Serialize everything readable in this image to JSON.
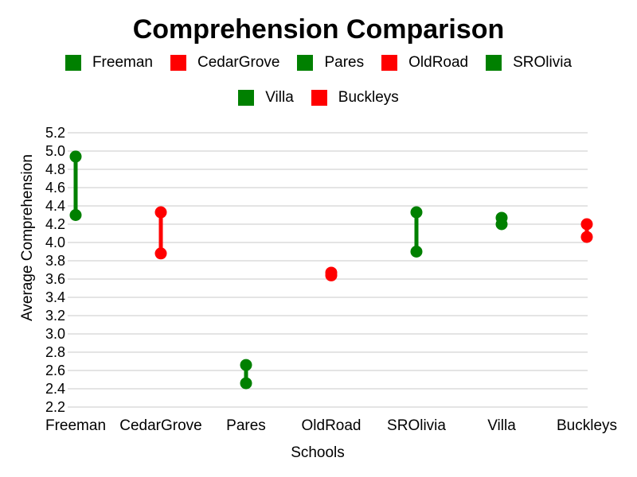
{
  "chart_data": {
    "type": "dumbbell",
    "title": "Comprehension Comparison",
    "xlabel": "Schools",
    "ylabel": "Average Comprehension",
    "ylim": [
      2.2,
      5.2
    ],
    "yticks": [
      "2.2",
      "2.4",
      "2.6",
      "2.8",
      "3.0",
      "3.2",
      "3.4",
      "3.6",
      "3.8",
      "4.0",
      "4.2",
      "4.4",
      "4.6",
      "4.8",
      "5.0",
      "5.2"
    ],
    "grid": true,
    "legend_position": "top",
    "categories": [
      "Freeman",
      "CedarGrove",
      "Pares",
      "OldRoad",
      "SROlivia",
      "Villa",
      "Buckleys"
    ],
    "series": [
      {
        "name": "Freeman",
        "color": "#008000",
        "low": 4.3,
        "high": 4.94
      },
      {
        "name": "CedarGrove",
        "color": "#ff0000",
        "low": 3.88,
        "high": 4.33
      },
      {
        "name": "Pares",
        "color": "#008000",
        "low": 2.46,
        "high": 2.66
      },
      {
        "name": "OldRoad",
        "color": "#ff0000",
        "low": 3.64,
        "high": 3.67
      },
      {
        "name": "SROlivia",
        "color": "#008000",
        "low": 3.9,
        "high": 4.33
      },
      {
        "name": "Villa",
        "color": "#008000",
        "low": 4.2,
        "high": 4.27
      },
      {
        "name": "Buckleys",
        "color": "#ff0000",
        "low": 4.06,
        "high": 4.2
      }
    ]
  }
}
